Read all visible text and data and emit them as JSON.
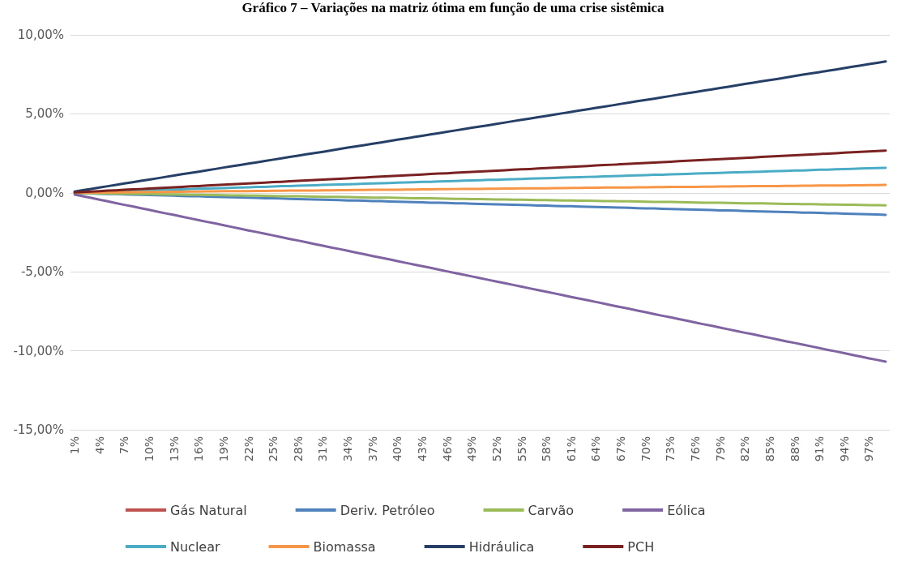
{
  "chart_data": {
    "type": "line",
    "title": "Gráfico 7 – Variações na matriz ótima em função de uma crise sistêmica",
    "categories": [
      "1%",
      null,
      null,
      "4%",
      null,
      null,
      "7%",
      null,
      null,
      "10%",
      null,
      null,
      "13%",
      null,
      null,
      "16%",
      null,
      null,
      "19%",
      null,
      null,
      "22%",
      null,
      null,
      "25%",
      null,
      null,
      "28%",
      null,
      null,
      "31%",
      null,
      null,
      "34%",
      null,
      null,
      "37%",
      null,
      null,
      "40%",
      null,
      null,
      "43%",
      null,
      null,
      "46%",
      null,
      null,
      "49%",
      null,
      null,
      "52%",
      null,
      null,
      "55%",
      null,
      null,
      "58%",
      null,
      null,
      "61%",
      null,
      null,
      "64%",
      null,
      null,
      "67%",
      null,
      null,
      "70%",
      null,
      null,
      "73%",
      null,
      null,
      "76%",
      null,
      null,
      "79%",
      null,
      null,
      "82%",
      null,
      null,
      "85%",
      null,
      null,
      "88%",
      null,
      null,
      "91%",
      null,
      null,
      "94%",
      null,
      null,
      "97%",
      null,
      null
    ],
    "series": [
      {
        "name": "Gás Natural",
        "color": "#c0504d",
        "values": [
          null,
          null,
          null,
          null,
          null,
          null,
          null,
          null,
          null,
          null,
          null,
          null,
          null,
          null,
          null,
          null,
          null,
          null,
          null,
          null,
          null,
          null,
          null,
          null,
          null,
          null,
          null,
          null,
          null,
          null,
          null,
          null,
          null,
          null,
          null,
          null,
          null,
          null,
          null,
          null,
          null,
          null,
          null,
          null,
          null,
          null,
          null,
          null,
          null,
          null,
          null,
          null,
          null,
          null,
          null,
          null,
          null,
          null,
          null,
          null,
          null,
          null,
          null,
          null,
          null,
          null,
          null,
          null,
          null,
          null,
          null,
          null,
          null,
          null,
          null,
          null,
          null,
          null,
          null,
          null,
          null,
          null,
          null,
          null,
          null,
          null,
          null,
          null,
          null,
          null,
          null,
          null,
          null,
          null,
          null,
          null,
          null,
          null,
          null
        ]
      },
      {
        "name": "Deriv. Petróleo",
        "color": "#4f81bd",
        "values": [
          -0.01,
          -0.03,
          -0.04,
          -0.06,
          -0.07,
          -0.08,
          -0.1,
          -0.11,
          -0.13,
          -0.14,
          -0.15,
          -0.17,
          -0.18,
          -0.2,
          -0.21,
          -0.22,
          -0.24,
          -0.25,
          -0.27,
          -0.28,
          -0.29,
          -0.31,
          -0.32,
          -0.34,
          -0.35,
          -0.36,
          -0.38,
          -0.39,
          -0.41,
          -0.42,
          -0.43,
          -0.45,
          -0.46,
          -0.48,
          -0.49,
          -0.5,
          -0.52,
          -0.53,
          -0.55,
          -0.56,
          -0.57,
          -0.59,
          -0.6,
          -0.62,
          -0.63,
          -0.64,
          -0.66,
          -0.67,
          -0.69,
          -0.7,
          -0.71,
          -0.73,
          -0.74,
          -0.76,
          -0.77,
          -0.78,
          -0.8,
          -0.81,
          -0.83,
          -0.84,
          -0.85,
          -0.87,
          -0.88,
          -0.9,
          -0.91,
          -0.92,
          -0.94,
          -0.95,
          -0.97,
          -0.98,
          -0.99,
          -1.01,
          -1.02,
          -1.04,
          -1.05,
          -1.06,
          -1.08,
          -1.09,
          -1.11,
          -1.12,
          -1.13,
          -1.15,
          -1.16,
          -1.18,
          -1.19,
          -1.2,
          -1.22,
          -1.23,
          -1.25,
          -1.26,
          -1.27,
          -1.29,
          -1.3,
          -1.32,
          -1.33,
          -1.34,
          -1.36,
          -1.37,
          -1.39
        ]
      },
      {
        "name": "Carvão",
        "color": "#9bbb59",
        "values": [
          -0.01,
          -0.02,
          -0.02,
          -0.03,
          -0.04,
          -0.05,
          -0.06,
          -0.06,
          -0.07,
          -0.08,
          -0.09,
          -0.1,
          -0.1,
          -0.11,
          -0.12,
          -0.13,
          -0.14,
          -0.14,
          -0.15,
          -0.16,
          -0.17,
          -0.18,
          -0.18,
          -0.19,
          -0.2,
          -0.21,
          -0.22,
          -0.22,
          -0.23,
          -0.24,
          -0.25,
          -0.26,
          -0.26,
          -0.27,
          -0.28,
          -0.29,
          -0.3,
          -0.3,
          -0.31,
          -0.32,
          -0.33,
          -0.34,
          -0.34,
          -0.35,
          -0.36,
          -0.37,
          -0.38,
          -0.38,
          -0.39,
          -0.4,
          -0.41,
          -0.42,
          -0.42,
          -0.43,
          -0.44,
          -0.45,
          -0.46,
          -0.46,
          -0.47,
          -0.48,
          -0.49,
          -0.5,
          -0.5,
          -0.51,
          -0.52,
          -0.53,
          -0.54,
          -0.54,
          -0.55,
          -0.56,
          -0.57,
          -0.58,
          -0.58,
          -0.59,
          -0.6,
          -0.61,
          -0.62,
          -0.62,
          -0.63,
          -0.64,
          -0.65,
          -0.66,
          -0.66,
          -0.67,
          -0.68,
          -0.69,
          -0.7,
          -0.7,
          -0.71,
          -0.72,
          -0.73,
          -0.74,
          -0.74,
          -0.75,
          -0.76,
          -0.77,
          -0.78,
          -0.78,
          -0.79
        ]
      },
      {
        "name": "Eólica",
        "color": "#8064a2",
        "values": [
          -0.11,
          -0.22,
          -0.32,
          -0.43,
          -0.54,
          -0.65,
          -0.76,
          -0.86,
          -0.97,
          -1.08,
          -1.19,
          -1.3,
          -1.4,
          -1.51,
          -1.62,
          -1.73,
          -1.84,
          -1.94,
          -2.05,
          -2.16,
          -2.27,
          -2.38,
          -2.48,
          -2.59,
          -2.7,
          -2.81,
          -2.92,
          -3.02,
          -3.13,
          -3.24,
          -3.35,
          -3.46,
          -3.56,
          -3.67,
          -3.78,
          -3.89,
          -4.0,
          -4.1,
          -4.21,
          -4.32,
          -4.43,
          -4.54,
          -4.64,
          -4.75,
          -4.86,
          -4.97,
          -5.08,
          -5.18,
          -5.29,
          -5.4,
          -5.51,
          -5.62,
          -5.72,
          -5.83,
          -5.94,
          -6.05,
          -6.16,
          -6.26,
          -6.37,
          -6.48,
          -6.59,
          -6.7,
          -6.8,
          -6.91,
          -7.02,
          -7.13,
          -7.24,
          -7.34,
          -7.45,
          -7.56,
          -7.67,
          -7.78,
          -7.88,
          -7.99,
          -8.1,
          -8.21,
          -8.32,
          -8.42,
          -8.53,
          -8.64,
          -8.75,
          -8.86,
          -8.96,
          -9.07,
          -9.18,
          -9.29,
          -9.4,
          -9.5,
          -9.61,
          -9.72,
          -9.83,
          -9.94,
          -10.04,
          -10.15,
          -10.26,
          -10.37,
          -10.48,
          -10.58,
          -10.69
        ]
      },
      {
        "name": "Nuclear",
        "color": "#4bacc6",
        "values": [
          0.02,
          0.03,
          0.05,
          0.06,
          0.08,
          0.1,
          0.11,
          0.13,
          0.14,
          0.16,
          0.18,
          0.19,
          0.21,
          0.22,
          0.24,
          0.26,
          0.27,
          0.29,
          0.3,
          0.32,
          0.34,
          0.35,
          0.37,
          0.38,
          0.4,
          0.42,
          0.43,
          0.45,
          0.46,
          0.48,
          0.5,
          0.51,
          0.53,
          0.54,
          0.56,
          0.58,
          0.59,
          0.61,
          0.62,
          0.64,
          0.66,
          0.67,
          0.69,
          0.7,
          0.72,
          0.74,
          0.75,
          0.77,
          0.78,
          0.8,
          0.82,
          0.83,
          0.85,
          0.86,
          0.88,
          0.9,
          0.91,
          0.93,
          0.94,
          0.96,
          0.98,
          0.99,
          1.01,
          1.02,
          1.04,
          1.06,
          1.07,
          1.09,
          1.1,
          1.12,
          1.14,
          1.15,
          1.17,
          1.18,
          1.2,
          1.22,
          1.23,
          1.25,
          1.26,
          1.28,
          1.3,
          1.31,
          1.33,
          1.34,
          1.36,
          1.38,
          1.39,
          1.41,
          1.42,
          1.44,
          1.46,
          1.47,
          1.49,
          1.5,
          1.52,
          1.54,
          1.55,
          1.57,
          1.58
        ]
      },
      {
        "name": "Biomassa",
        "color": "#f79646",
        "values": [
          0.01,
          0.01,
          0.02,
          0.02,
          0.03,
          0.03,
          0.04,
          0.04,
          0.05,
          0.05,
          0.06,
          0.06,
          0.07,
          0.07,
          0.08,
          0.08,
          0.09,
          0.09,
          0.1,
          0.1,
          0.11,
          0.11,
          0.12,
          0.12,
          0.13,
          0.13,
          0.14,
          0.14,
          0.15,
          0.15,
          0.16,
          0.16,
          0.17,
          0.17,
          0.18,
          0.18,
          0.19,
          0.19,
          0.2,
          0.2,
          0.21,
          0.21,
          0.22,
          0.22,
          0.23,
          0.23,
          0.24,
          0.24,
          0.25,
          0.25,
          0.26,
          0.26,
          0.27,
          0.27,
          0.28,
          0.28,
          0.29,
          0.29,
          0.3,
          0.3,
          0.31,
          0.31,
          0.32,
          0.32,
          0.33,
          0.33,
          0.34,
          0.34,
          0.35,
          0.35,
          0.36,
          0.36,
          0.37,
          0.37,
          0.38,
          0.38,
          0.39,
          0.39,
          0.4,
          0.4,
          0.41,
          0.41,
          0.42,
          0.42,
          0.43,
          0.43,
          0.44,
          0.44,
          0.45,
          0.45,
          0.46,
          0.46,
          0.47,
          0.47,
          0.48,
          0.48,
          0.49,
          0.49,
          0.5
        ]
      },
      {
        "name": "Hidráulica",
        "color": "#253f66",
        "values": [
          0.08,
          0.17,
          0.25,
          0.34,
          0.42,
          0.5,
          0.59,
          0.67,
          0.76,
          0.84,
          0.92,
          1.01,
          1.09,
          1.18,
          1.26,
          1.34,
          1.43,
          1.51,
          1.6,
          1.68,
          1.76,
          1.85,
          1.93,
          2.02,
          2.1,
          2.18,
          2.27,
          2.35,
          2.44,
          2.52,
          2.6,
          2.69,
          2.77,
          2.86,
          2.94,
          3.02,
          3.11,
          3.19,
          3.28,
          3.36,
          3.44,
          3.53,
          3.61,
          3.7,
          3.78,
          3.86,
          3.95,
          4.03,
          4.12,
          4.2,
          4.28,
          4.37,
          4.45,
          4.54,
          4.62,
          4.7,
          4.79,
          4.87,
          4.96,
          5.04,
          5.12,
          5.21,
          5.29,
          5.38,
          5.46,
          5.54,
          5.63,
          5.71,
          5.8,
          5.88,
          5.96,
          6.05,
          6.13,
          6.22,
          6.3,
          6.38,
          6.47,
          6.55,
          6.64,
          6.72,
          6.8,
          6.89,
          6.97,
          7.06,
          7.14,
          7.22,
          7.31,
          7.39,
          7.48,
          7.56,
          7.64,
          7.73,
          7.81,
          7.9,
          7.98,
          8.06,
          8.15,
          8.23,
          8.32
        ]
      },
      {
        "name": "PCH",
        "color": "#7a2222",
        "values": [
          0.03,
          0.05,
          0.08,
          0.11,
          0.14,
          0.16,
          0.19,
          0.22,
          0.24,
          0.27,
          0.3,
          0.32,
          0.35,
          0.38,
          0.41,
          0.43,
          0.46,
          0.49,
          0.51,
          0.54,
          0.57,
          0.59,
          0.62,
          0.65,
          0.68,
          0.7,
          0.73,
          0.76,
          0.78,
          0.81,
          0.84,
          0.86,
          0.89,
          0.92,
          0.95,
          0.97,
          1.0,
          1.03,
          1.05,
          1.08,
          1.11,
          1.13,
          1.16,
          1.19,
          1.22,
          1.24,
          1.27,
          1.3,
          1.32,
          1.35,
          1.38,
          1.4,
          1.43,
          1.46,
          1.49,
          1.51,
          1.54,
          1.57,
          1.59,
          1.62,
          1.65,
          1.67,
          1.7,
          1.73,
          1.76,
          1.78,
          1.81,
          1.84,
          1.86,
          1.89,
          1.92,
          1.94,
          1.97,
          2.0,
          2.03,
          2.05,
          2.08,
          2.11,
          2.13,
          2.16,
          2.19,
          2.21,
          2.24,
          2.27,
          2.3,
          2.32,
          2.35,
          2.38,
          2.4,
          2.43,
          2.46,
          2.48,
          2.51,
          2.54,
          2.57,
          2.59,
          2.62,
          2.65,
          2.67
        ]
      }
    ],
    "ylim": [
      -15,
      10
    ],
    "yticks": [
      {
        "value": -15,
        "label": "-15,00%"
      },
      {
        "value": -10,
        "label": "-10,00%"
      },
      {
        "value": -5,
        "label": "-5,00%"
      },
      {
        "value": 0,
        "label": "0,00%"
      },
      {
        "value": 5,
        "label": "5,00%"
      },
      {
        "value": 10,
        "label": "10,00%"
      }
    ],
    "grid": "y",
    "legend": "bottom",
    "marker": "none",
    "line_style": "solid"
  }
}
